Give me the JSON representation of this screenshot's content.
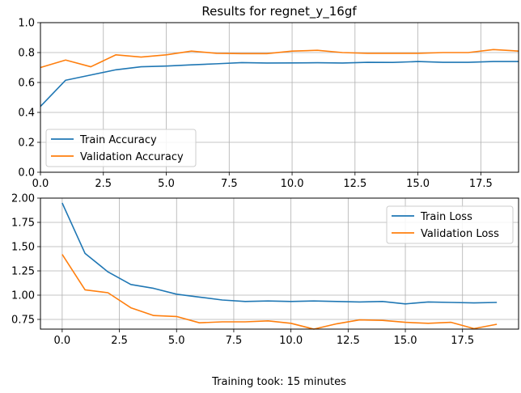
{
  "figure": {
    "title": "Results for regnet_y_16gf",
    "footer": "Training took: 15 minutes"
  },
  "chart_data": [
    {
      "type": "line",
      "title": "Results for regnet_y_16gf",
      "xlabel": "",
      "ylabel": "",
      "xlim": [
        0,
        19
      ],
      "ylim": [
        0,
        1.0
      ],
      "xticks": [
        "0.0",
        "2.5",
        "5.0",
        "7.5",
        "10.0",
        "12.5",
        "15.0",
        "17.5"
      ],
      "yticks": [
        "0.0",
        "0.2",
        "0.4",
        "0.6",
        "0.8",
        "1.0"
      ],
      "grid": true,
      "legend_position": "lower-left",
      "x": [
        0,
        1,
        2,
        3,
        4,
        5,
        6,
        7,
        8,
        9,
        10,
        11,
        12,
        13,
        14,
        15,
        16,
        17,
        18,
        19
      ],
      "series": [
        {
          "name": "Train Accuracy",
          "color": "#1f77b4",
          "values": [
            0.44,
            0.615,
            0.65,
            0.685,
            0.705,
            0.71,
            0.718,
            0.725,
            0.733,
            0.73,
            0.731,
            0.732,
            0.73,
            0.735,
            0.734,
            0.74,
            0.735,
            0.735,
            0.74,
            0.74
          ]
        },
        {
          "name": "Validation Accuracy",
          "color": "#ff7f0e",
          "values": [
            0.7,
            0.75,
            0.705,
            0.785,
            0.77,
            0.785,
            0.81,
            0.795,
            0.793,
            0.793,
            0.81,
            0.815,
            0.8,
            0.795,
            0.795,
            0.795,
            0.8,
            0.8,
            0.82,
            0.81
          ]
        }
      ]
    },
    {
      "type": "line",
      "title": "",
      "xlabel": "Training took: 15 minutes",
      "ylabel": "",
      "xlim": [
        -0.95,
        19.95
      ],
      "ylim": [
        0.65,
        2.0
      ],
      "xticks": [
        "0.0",
        "2.5",
        "5.0",
        "7.5",
        "10.0",
        "12.5",
        "15.0",
        "17.5"
      ],
      "yticks": [
        "0.75",
        "1.00",
        "1.25",
        "1.50",
        "1.75",
        "2.00"
      ],
      "grid": true,
      "legend_position": "top-right",
      "x": [
        0,
        1,
        2,
        3,
        4,
        5,
        6,
        7,
        8,
        9,
        10,
        11,
        12,
        13,
        14,
        15,
        16,
        17,
        18,
        19
      ],
      "series": [
        {
          "name": "Train Loss",
          "color": "#1f77b4",
          "values": [
            1.95,
            1.43,
            1.24,
            1.11,
            1.07,
            1.01,
            0.98,
            0.95,
            0.935,
            0.94,
            0.935,
            0.94,
            0.935,
            0.93,
            0.935,
            0.91,
            0.93,
            0.925,
            0.92,
            0.925
          ]
        },
        {
          "name": "Validation Loss",
          "color": "#ff7f0e",
          "values": [
            1.42,
            1.055,
            1.025,
            0.87,
            0.79,
            0.78,
            0.715,
            0.725,
            0.725,
            0.735,
            0.71,
            0.65,
            0.705,
            0.745,
            0.74,
            0.72,
            0.71,
            0.72,
            0.655,
            0.7
          ]
        }
      ]
    }
  ]
}
